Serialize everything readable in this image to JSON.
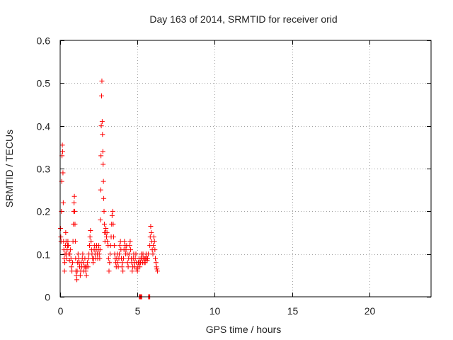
{
  "chart_data": {
    "type": "scatter",
    "title": "Day 163 of 2014, SRMTID for receiver orid",
    "xlabel": "GPS time / hours",
    "ylabel": "SRMTID / TECUs",
    "xlim": [
      0,
      24
    ],
    "ylim": [
      0,
      0.6
    ],
    "x_ticks": [
      0,
      5,
      10,
      15,
      20
    ],
    "x_tick_labels": [
      "0",
      "5",
      "10",
      "15",
      "20"
    ],
    "y_ticks": [
      0,
      0.1,
      0.2,
      0.3,
      0.4,
      0.5,
      0.6
    ],
    "y_tick_labels": [
      "0",
      "0.1",
      "0.2",
      "0.3",
      "0.4",
      "0.5",
      "0.6"
    ],
    "grid": true,
    "marker": "+",
    "color": "#ff0000",
    "series": [
      {
        "name": "SRMTID",
        "points": [
          [
            0.02,
            0.16
          ],
          [
            0.04,
            0.14
          ],
          [
            0.06,
            0.13
          ],
          [
            0.08,
            0.2
          ],
          [
            0.1,
            0.27
          ],
          [
            0.12,
            0.33
          ],
          [
            0.14,
            0.355
          ],
          [
            0.16,
            0.34
          ],
          [
            0.18,
            0.29
          ],
          [
            0.2,
            0.22
          ],
          [
            0.22,
            0.13
          ],
          [
            0.24,
            0.11
          ],
          [
            0.26,
            0.09
          ],
          [
            0.28,
            0.06
          ],
          [
            0.3,
            0.08
          ],
          [
            0.32,
            0.1
          ],
          [
            0.34,
            0.12
          ],
          [
            0.36,
            0.15
          ],
          [
            0.38,
            0.13
          ],
          [
            0.4,
            0.1
          ],
          [
            0.42,
            0.09
          ],
          [
            0.45,
            0.11
          ],
          [
            0.48,
            0.12
          ],
          [
            0.5,
            0.13
          ],
          [
            0.53,
            0.12
          ],
          [
            0.56,
            0.1
          ],
          [
            0.6,
            0.085
          ],
          [
            0.63,
            0.1
          ],
          [
            0.66,
            0.11
          ],
          [
            0.7,
            0.09
          ],
          [
            0.73,
            0.07
          ],
          [
            0.76,
            0.06
          ],
          [
            0.8,
            0.08
          ],
          [
            0.83,
            0.13
          ],
          [
            0.86,
            0.17
          ],
          [
            0.88,
            0.2
          ],
          [
            0.9,
            0.22
          ],
          [
            0.92,
            0.235
          ],
          [
            0.94,
            0.2
          ],
          [
            0.96,
            0.17
          ],
          [
            0.98,
            0.13
          ],
          [
            1.0,
            0.09
          ],
          [
            1.02,
            0.06
          ],
          [
            1.05,
            0.05
          ],
          [
            1.08,
            0.04
          ],
          [
            1.1,
            0.06
          ],
          [
            1.13,
            0.08
          ],
          [
            1.16,
            0.1
          ],
          [
            1.2,
            0.09
          ],
          [
            1.23,
            0.08
          ],
          [
            1.26,
            0.07
          ],
          [
            1.3,
            0.05
          ],
          [
            1.33,
            0.06
          ],
          [
            1.36,
            0.08
          ],
          [
            1.4,
            0.07
          ],
          [
            1.43,
            0.09
          ],
          [
            1.46,
            0.1
          ],
          [
            1.5,
            0.08
          ],
          [
            1.53,
            0.06
          ],
          [
            1.56,
            0.07
          ],
          [
            1.6,
            0.09
          ],
          [
            1.63,
            0.07
          ],
          [
            1.66,
            0.06
          ],
          [
            1.7,
            0.05
          ],
          [
            1.73,
            0.07
          ],
          [
            1.76,
            0.08
          ],
          [
            1.8,
            0.07
          ],
          [
            1.83,
            0.09
          ],
          [
            1.86,
            0.1
          ],
          [
            1.9,
            0.12
          ],
          [
            1.93,
            0.14
          ],
          [
            1.96,
            0.155
          ],
          [
            2.0,
            0.13
          ],
          [
            2.03,
            0.11
          ],
          [
            2.06,
            0.1
          ],
          [
            2.1,
            0.09
          ],
          [
            2.13,
            0.08
          ],
          [
            2.16,
            0.09
          ],
          [
            2.2,
            0.11
          ],
          [
            2.23,
            0.12
          ],
          [
            2.26,
            0.1
          ],
          [
            2.3,
            0.09
          ],
          [
            2.33,
            0.11
          ],
          [
            2.36,
            0.12
          ],
          [
            2.4,
            0.1
          ],
          [
            2.43,
            0.09
          ],
          [
            2.46,
            0.11
          ],
          [
            2.5,
            0.12
          ],
          [
            2.53,
            0.1
          ],
          [
            2.56,
            0.09
          ],
          [
            2.58,
            0.11
          ],
          [
            2.6,
            0.18
          ],
          [
            2.62,
            0.25
          ],
          [
            2.64,
            0.33
          ],
          [
            2.66,
            0.4
          ],
          [
            2.68,
            0.47
          ],
          [
            2.7,
            0.505
          ],
          [
            2.72,
            0.41
          ],
          [
            2.74,
            0.38
          ],
          [
            2.76,
            0.34
          ],
          [
            2.78,
            0.31
          ],
          [
            2.8,
            0.27
          ],
          [
            2.82,
            0.23
          ],
          [
            2.84,
            0.2
          ],
          [
            2.86,
            0.17
          ],
          [
            2.88,
            0.15
          ],
          [
            2.9,
            0.13
          ],
          [
            2.93,
            0.15
          ],
          [
            2.96,
            0.16
          ],
          [
            3.0,
            0.14
          ],
          [
            3.03,
            0.15
          ],
          [
            3.06,
            0.13
          ],
          [
            3.1,
            0.12
          ],
          [
            3.13,
            0.09
          ],
          [
            3.16,
            0.06
          ],
          [
            3.2,
            0.08
          ],
          [
            3.23,
            0.1
          ],
          [
            3.26,
            0.12
          ],
          [
            3.3,
            0.14
          ],
          [
            3.33,
            0.17
          ],
          [
            3.36,
            0.19
          ],
          [
            3.4,
            0.2
          ],
          [
            3.43,
            0.17
          ],
          [
            3.46,
            0.14
          ],
          [
            3.5,
            0.12
          ],
          [
            3.53,
            0.1
          ],
          [
            3.56,
            0.09
          ],
          [
            3.6,
            0.08
          ],
          [
            3.63,
            0.07
          ],
          [
            3.66,
            0.09
          ],
          [
            3.7,
            0.1
          ],
          [
            3.73,
            0.08
          ],
          [
            3.76,
            0.07
          ],
          [
            3.8,
            0.09
          ],
          [
            3.83,
            0.1
          ],
          [
            3.86,
            0.12
          ],
          [
            3.9,
            0.13
          ],
          [
            3.93,
            0.11
          ],
          [
            3.96,
            0.09
          ],
          [
            4.0,
            0.07
          ],
          [
            4.03,
            0.08
          ],
          [
            4.06,
            0.06
          ],
          [
            4.1,
            0.09
          ],
          [
            4.13,
            0.11
          ],
          [
            4.16,
            0.13
          ],
          [
            4.2,
            0.12
          ],
          [
            4.23,
            0.1
          ],
          [
            4.26,
            0.11
          ],
          [
            4.3,
            0.12
          ],
          [
            4.33,
            0.1
          ],
          [
            4.36,
            0.08
          ],
          [
            4.4,
            0.07
          ],
          [
            4.43,
            0.09
          ],
          [
            4.46,
            0.1
          ],
          [
            4.5,
            0.12
          ],
          [
            4.53,
            0.13
          ],
          [
            4.56,
            0.11
          ],
          [
            4.6,
            0.09
          ],
          [
            4.63,
            0.08
          ],
          [
            4.66,
            0.06
          ],
          [
            4.7,
            0.07
          ],
          [
            4.73,
            0.09
          ],
          [
            4.76,
            0.1
          ],
          [
            4.8,
            0.08
          ],
          [
            4.83,
            0.07
          ],
          [
            4.86,
            0.09
          ],
          [
            4.9,
            0.1
          ],
          [
            4.93,
            0.08
          ],
          [
            4.96,
            0.065
          ],
          [
            5.0,
            0.06
          ],
          [
            5.03,
            0.07
          ],
          [
            5.06,
            0.08
          ],
          [
            5.1,
            0.09
          ],
          [
            5.13,
            0.08
          ],
          [
            5.16,
            0.07
          ],
          [
            5.2,
            0.08
          ],
          [
            5.23,
            0.09
          ],
          [
            5.26,
            0.1
          ],
          [
            5.3,
            0.09
          ],
          [
            5.33,
            0.08
          ],
          [
            5.36,
            0.1
          ],
          [
            5.4,
            0.09
          ],
          [
            5.43,
            0.08
          ],
          [
            5.46,
            0.09
          ],
          [
            5.5,
            0.08
          ],
          [
            5.53,
            0.09
          ],
          [
            5.56,
            0.1
          ],
          [
            5.6,
            0.09
          ],
          [
            5.63,
            0.085
          ],
          [
            5.66,
            0.09
          ],
          [
            5.7,
            0.1
          ],
          [
            5.8,
            0.12
          ],
          [
            5.83,
            0.14
          ],
          [
            5.86,
            0.165
          ],
          [
            5.9,
            0.15
          ],
          [
            5.93,
            0.13
          ],
          [
            5.96,
            0.11
          ],
          [
            6.0,
            0.1
          ],
          [
            6.03,
            0.12
          ],
          [
            6.06,
            0.14
          ],
          [
            6.1,
            0.13
          ],
          [
            6.13,
            0.11
          ],
          [
            6.16,
            0.09
          ],
          [
            6.2,
            0.08
          ],
          [
            6.23,
            0.07
          ],
          [
            6.26,
            0.065
          ],
          [
            6.3,
            0.06
          ],
          [
            5.12,
            0.0
          ],
          [
            5.16,
            0.0
          ],
          [
            5.2,
            0.0
          ],
          [
            5.24,
            0.0
          ],
          [
            5.28,
            0.0
          ],
          [
            5.72,
            0.0
          ],
          [
            5.76,
            0.0
          ],
          [
            5.8,
            0.0
          ]
        ]
      }
    ]
  }
}
